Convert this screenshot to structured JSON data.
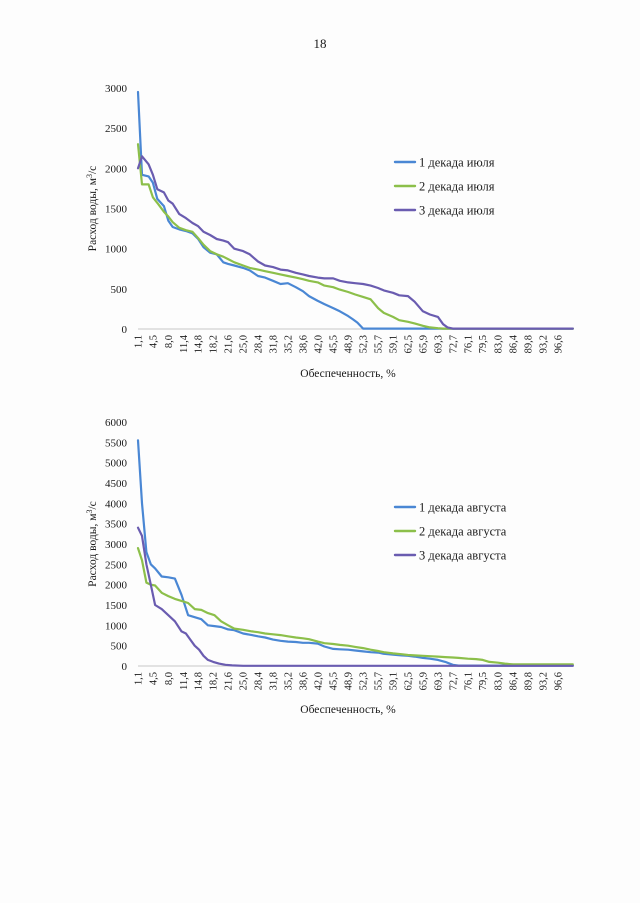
{
  "page_number": "18",
  "chart_data": [
    {
      "type": "line",
      "title": "",
      "xlabel": "Обеспеченность, %",
      "ylabel": "Расход воды, м³/с",
      "ylabel_main": "Расход воды, м",
      "ylabel_sup": "3",
      "ylabel_tail": "/с",
      "ylim": [
        0,
        3000
      ],
      "yticks": [
        0,
        500,
        1000,
        1500,
        2000,
        2500,
        3000
      ],
      "xlim": [
        1.1,
        98.9
      ],
      "xticks": [
        "1,1",
        "4,5",
        "8,0",
        "11,4",
        "14,8",
        "18,2",
        "21,6",
        "25,0",
        "28,4",
        "31,8",
        "35,2",
        "38,6",
        "42,0",
        "45,5",
        "48,9",
        "52,3",
        "55,7",
        "59,1",
        "62,5",
        "65,9",
        "69,3",
        "72,7",
        "76,1",
        "79,5",
        "83,0",
        "86,4",
        "89,8",
        "93,2",
        "96,6"
      ],
      "xtick_values": [
        1.1,
        4.5,
        8.0,
        11.4,
        14.8,
        18.2,
        21.6,
        25.0,
        28.4,
        31.8,
        35.2,
        38.6,
        42.0,
        45.5,
        48.9,
        52.3,
        55.7,
        59.1,
        62.5,
        65.9,
        69.3,
        72.7,
        76.1,
        79.5,
        83.0,
        86.4,
        89.8,
        93.2,
        96.6
      ],
      "legend_position": "right",
      "series": [
        {
          "name": "1 декада июля",
          "color": "#4a87d4",
          "x": [
            1.1,
            2.0,
            3.5,
            4.5,
            5.5,
            7.0,
            8.0,
            9.0,
            10.5,
            12.0,
            13.5,
            14.8,
            16.0,
            17.5,
            19.0,
            20.5,
            21.6,
            23.0,
            25.0,
            26.5,
            28.4,
            30.0,
            31.8,
            33.5,
            35.2,
            37.0,
            38.6,
            40.0,
            42.0,
            43.5,
            45.5,
            47.0,
            48.9,
            50.0,
            51.0,
            52.3,
            100.0
          ],
          "y": [
            2950,
            1920,
            1900,
            1820,
            1620,
            1530,
            1350,
            1270,
            1240,
            1220,
            1190,
            1120,
            1020,
            950,
            930,
            830,
            810,
            790,
            760,
            730,
            660,
            640,
            600,
            560,
            570,
            520,
            470,
            410,
            350,
            310,
            260,
            220,
            160,
            120,
            80,
            5,
            5
          ]
        },
        {
          "name": "2 декада июля",
          "color": "#8cbf4a",
          "x": [
            1.1,
            2.0,
            3.5,
            4.5,
            5.5,
            7.0,
            8.0,
            9.0,
            10.5,
            12.0,
            13.5,
            14.8,
            16.0,
            17.5,
            19.0,
            20.5,
            21.6,
            23.0,
            25.0,
            26.5,
            28.4,
            30.0,
            31.8,
            33.5,
            35.2,
            37.0,
            38.6,
            40.0,
            42.0,
            43.5,
            45.5,
            47.0,
            48.9,
            50.5,
            52.3,
            54.0,
            55.7,
            57.0,
            59.1,
            60.5,
            62.5,
            64.0,
            65.9,
            67.5,
            69.3,
            70.5,
            100.0
          ],
          "y": [
            2300,
            1800,
            1800,
            1640,
            1570,
            1460,
            1400,
            1330,
            1260,
            1230,
            1210,
            1130,
            1050,
            970,
            930,
            900,
            870,
            830,
            790,
            760,
            740,
            720,
            700,
            680,
            660,
            640,
            620,
            600,
            580,
            540,
            520,
            490,
            460,
            430,
            400,
            370,
            260,
            200,
            150,
            110,
            90,
            70,
            40,
            20,
            10,
            5,
            5
          ]
        },
        {
          "name": "3 декада июля",
          "color": "#6a5cb0",
          "x": [
            1.1,
            2.0,
            3.5,
            4.5,
            5.5,
            7.0,
            8.0,
            9.0,
            10.5,
            12.0,
            13.5,
            14.8,
            16.0,
            17.5,
            19.0,
            20.5,
            21.6,
            23.0,
            25.0,
            26.5,
            28.4,
            30.0,
            31.8,
            33.5,
            35.2,
            37.0,
            38.6,
            40.0,
            42.0,
            43.5,
            45.5,
            47.0,
            48.9,
            50.5,
            52.3,
            54.0,
            55.7,
            57.0,
            59.1,
            60.5,
            62.5,
            64.0,
            65.9,
            67.5,
            69.3,
            70.5,
            71.5,
            72.7,
            100.0
          ],
          "y": [
            2000,
            2150,
            2050,
            1920,
            1740,
            1700,
            1600,
            1560,
            1430,
            1380,
            1320,
            1280,
            1210,
            1170,
            1120,
            1100,
            1080,
            1000,
            970,
            930,
            840,
            790,
            770,
            740,
            730,
            700,
            680,
            660,
            640,
            630,
            630,
            600,
            580,
            570,
            560,
            540,
            510,
            480,
            450,
            420,
            410,
            340,
            220,
            180,
            150,
            60,
            20,
            5,
            5
          ]
        }
      ]
    },
    {
      "type": "line",
      "title": "",
      "xlabel": "Обеспеченность, %",
      "ylabel": "Расход воды, м³/с",
      "ylabel_main": "Расход воды, м",
      "ylabel_sup": "3",
      "ylabel_tail": "/с",
      "ylim": [
        0,
        6000
      ],
      "yticks": [
        0,
        500,
        1000,
        1500,
        2000,
        2500,
        3000,
        3500,
        4000,
        4500,
        5000,
        5500,
        6000
      ],
      "xlim": [
        1.1,
        98.9
      ],
      "xticks": [
        "1,1",
        "4,5",
        "8,0",
        "11,4",
        "14,8",
        "18,2",
        "21,6",
        "25,0",
        "28,4",
        "31,8",
        "35,2",
        "38,6",
        "42,0",
        "45,5",
        "48,9",
        "52,3",
        "55,7",
        "59,1",
        "62,5",
        "65,9",
        "69,3",
        "72,7",
        "76,1",
        "79,5",
        "83,0",
        "86,4",
        "89,8",
        "93,2",
        "96,6"
      ],
      "xtick_values": [
        1.1,
        4.5,
        8.0,
        11.4,
        14.8,
        18.2,
        21.6,
        25.0,
        28.4,
        31.8,
        35.2,
        38.6,
        42.0,
        45.5,
        48.9,
        52.3,
        55.7,
        59.1,
        62.5,
        65.9,
        69.3,
        72.7,
        76.1,
        79.5,
        83.0,
        86.4,
        89.8,
        93.2,
        96.6
      ],
      "legend_position": "right",
      "series": [
        {
          "name": "1 декада августа",
          "color": "#4a87d4",
          "x": [
            1.1,
            2.0,
            3.0,
            4.0,
            5.0,
            6.5,
            8.0,
            9.5,
            11.0,
            12.5,
            14.0,
            15.5,
            17.0,
            18.5,
            20.0,
            21.6,
            23.0,
            25.0,
            27.0,
            28.4,
            30.0,
            31.8,
            33.5,
            35.2,
            37.0,
            38.6,
            40.0,
            42.0,
            43.5,
            45.5,
            47.0,
            48.9,
            50.5,
            52.3,
            54.0,
            55.7,
            57.0,
            59.1,
            61.0,
            62.5,
            64.0,
            65.9,
            67.5,
            69.3,
            71.0,
            72.7,
            74.0,
            100.0
          ],
          "y": [
            5550,
            4000,
            2800,
            2500,
            2400,
            2200,
            2180,
            2150,
            1750,
            1250,
            1200,
            1150,
            1000,
            980,
            960,
            900,
            880,
            800,
            760,
            730,
            700,
            650,
            620,
            600,
            590,
            570,
            570,
            550,
            480,
            420,
            410,
            400,
            380,
            360,
            340,
            330,
            300,
            280,
            260,
            250,
            230,
            200,
            180,
            150,
            100,
            30,
            10,
            10
          ]
        },
        {
          "name": "2 декада августа",
          "color": "#8cbf4a",
          "x": [
            1.1,
            2.0,
            3.0,
            4.0,
            5.0,
            6.5,
            8.0,
            9.5,
            11.0,
            12.5,
            14.0,
            15.5,
            17.0,
            18.5,
            20.0,
            21.6,
            23.0,
            25.0,
            27.0,
            28.4,
            30.0,
            31.8,
            33.5,
            35.2,
            37.0,
            38.6,
            40.0,
            42.0,
            43.5,
            45.5,
            47.0,
            48.9,
            50.5,
            52.3,
            54.0,
            55.7,
            57.0,
            59.1,
            61.0,
            62.5,
            64.0,
            65.9,
            67.5,
            69.3,
            71.0,
            72.7,
            74.0,
            76.1,
            78.0,
            79.5,
            81.0,
            83.0,
            84.5,
            86.4,
            100.0
          ],
          "y": [
            2900,
            2600,
            2050,
            2000,
            1980,
            1800,
            1720,
            1650,
            1600,
            1550,
            1400,
            1380,
            1300,
            1250,
            1100,
            1000,
            920,
            890,
            850,
            830,
            800,
            780,
            760,
            730,
            700,
            680,
            660,
            600,
            560,
            540,
            520,
            500,
            470,
            440,
            400,
            370,
            340,
            310,
            290,
            270,
            260,
            250,
            240,
            230,
            220,
            210,
            200,
            180,
            170,
            150,
            100,
            80,
            60,
            40,
            40
          ]
        },
        {
          "name": "3 декада августа",
          "color": "#6a5cb0",
          "x": [
            1.1,
            2.0,
            3.0,
            4.0,
            5.0,
            6.5,
            8.0,
            9.5,
            11.0,
            12.0,
            13.0,
            14.0,
            15.0,
            16.0,
            17.0,
            18.2,
            19.5,
            21.0,
            22.5,
            25.0,
            100.0
          ],
          "y": [
            3400,
            3200,
            2500,
            2000,
            1500,
            1400,
            1250,
            1100,
            850,
            800,
            650,
            500,
            400,
            250,
            150,
            100,
            60,
            30,
            15,
            5,
            5
          ]
        }
      ]
    }
  ]
}
